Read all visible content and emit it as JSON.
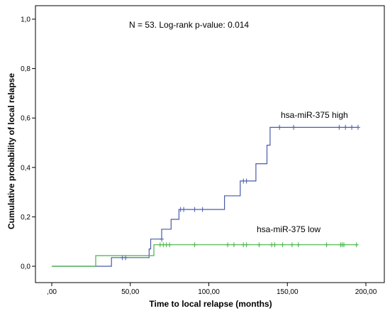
{
  "chart_data": {
    "type": "line",
    "subtype": "kaplan-meier step plot with censor ticks",
    "annotation": "N = 53. Log-rank p-value: 0.014",
    "xlabel": "Time to local relapse (months)",
    "ylabel": "Cumulative probability of local relapse",
    "xlim": [
      0,
      200
    ],
    "ylim": [
      0,
      1.0
    ],
    "x_ticks": [
      0,
      50,
      100,
      150,
      200
    ],
    "x_tick_labels": [
      ",00",
      "50,00",
      "100,00",
      "150,00",
      "200,00"
    ],
    "y_ticks": [
      0,
      0.2,
      0.4,
      0.6,
      0.8,
      1.0
    ],
    "y_tick_labels": [
      "0,0",
      "0,2",
      "0,4",
      "0,6",
      "0,8",
      "1,0"
    ],
    "grid": false,
    "series": [
      {
        "name": "hsa-miR-375 high",
        "color": "#4a5aa8",
        "steps": [
          [
            0,
            0
          ],
          [
            38,
            0
          ],
          [
            38,
            0.035
          ],
          [
            62,
            0.035
          ],
          [
            62,
            0.07
          ],
          [
            63,
            0.07
          ],
          [
            63,
            0.11
          ],
          [
            70,
            0.11
          ],
          [
            70,
            0.15
          ],
          [
            76,
            0.15
          ],
          [
            76,
            0.19
          ],
          [
            81,
            0.19
          ],
          [
            81,
            0.23
          ],
          [
            110,
            0.23
          ],
          [
            110,
            0.285
          ],
          [
            120,
            0.285
          ],
          [
            120,
            0.345
          ],
          [
            130,
            0.345
          ],
          [
            130,
            0.415
          ],
          [
            137,
            0.415
          ],
          [
            137,
            0.49
          ],
          [
            139,
            0.49
          ],
          [
            139,
            0.562
          ],
          [
            195,
            0.562
          ]
        ],
        "censored": [
          [
            45,
            0.035
          ],
          [
            47,
            0.035
          ],
          [
            70,
            0.11
          ],
          [
            82,
            0.23
          ],
          [
            84,
            0.23
          ],
          [
            91,
            0.23
          ],
          [
            96,
            0.23
          ],
          [
            122,
            0.345
          ],
          [
            124,
            0.345
          ],
          [
            145,
            0.562
          ],
          [
            154,
            0.562
          ],
          [
            183,
            0.562
          ],
          [
            187,
            0.562
          ],
          [
            191,
            0.562
          ],
          [
            195,
            0.562
          ]
        ],
        "label": "hsa-miR-375 high"
      },
      {
        "name": "hsa-miR-375 low",
        "color": "#45b545",
        "steps": [
          [
            0,
            0
          ],
          [
            28,
            0
          ],
          [
            28,
            0.043
          ],
          [
            65,
            0.043
          ],
          [
            65,
            0.087
          ],
          [
            195,
            0.087
          ]
        ],
        "censored": [
          [
            69,
            0.087
          ],
          [
            71,
            0.087
          ],
          [
            73,
            0.087
          ],
          [
            75,
            0.087
          ],
          [
            91,
            0.087
          ],
          [
            112,
            0.087
          ],
          [
            116,
            0.087
          ],
          [
            122,
            0.087
          ],
          [
            124,
            0.087
          ],
          [
            132,
            0.087
          ],
          [
            140,
            0.087
          ],
          [
            142,
            0.087
          ],
          [
            147,
            0.087
          ],
          [
            153,
            0.087
          ],
          [
            157,
            0.087
          ],
          [
            175,
            0.087
          ],
          [
            184,
            0.087
          ],
          [
            185,
            0.087
          ],
          [
            186,
            0.087
          ],
          [
            194,
            0.087
          ]
        ],
        "label": "hsa-miR-375 low"
      }
    ]
  }
}
